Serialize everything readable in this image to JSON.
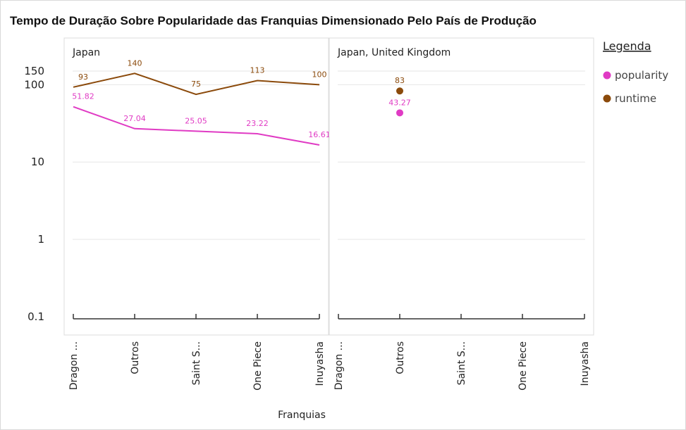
{
  "chart_data": {
    "type": "line",
    "title": "Tempo de Duração Sobre Popularidade das Franquias Dimensionado Pelo País de Produção",
    "xlabel": "Franquias",
    "ylabel": "",
    "y_scale": "log",
    "ylim": [
      0.1,
      150
    ],
    "y_ticks": [
      0.1,
      1,
      10,
      100,
      150
    ],
    "y_tick_labels": [
      "0.1",
      "1",
      "10",
      "100",
      "150"
    ],
    "categories": [
      "Dragon ...",
      "Outros",
      "Saint S...",
      "One Piece",
      "Inuyasha"
    ],
    "legend": {
      "title": "Legenda",
      "position": "right",
      "entries": [
        {
          "name": "popularity",
          "color": "#e03bc4"
        },
        {
          "name": "runtime",
          "color": "#8b4a0b"
        }
      ]
    },
    "panels": [
      {
        "title": "Japan",
        "series": [
          {
            "name": "runtime",
            "color": "#8b4a0b",
            "values": [
              93,
              140,
              75,
              113,
              100
            ],
            "labels": [
              "93",
              "140",
              "75",
              "113",
              "100"
            ]
          },
          {
            "name": "popularity",
            "color": "#e03bc4",
            "values": [
              51.82,
              27.04,
              25.05,
              23.22,
              16.61
            ],
            "labels": [
              "51.82",
              "27.04",
              "25.05",
              "23.22",
              "16.61"
            ]
          }
        ]
      },
      {
        "title": "Japan, United Kingdom",
        "series": [
          {
            "name": "runtime",
            "color": "#8b4a0b",
            "values": [
              null,
              83,
              null,
              null,
              null
            ],
            "labels": [
              "",
              "83",
              "",
              "",
              ""
            ]
          },
          {
            "name": "popularity",
            "color": "#e03bc4",
            "values": [
              null,
              43.27,
              null,
              null,
              null
            ],
            "labels": [
              "",
              "43.27",
              "",
              "",
              ""
            ]
          }
        ]
      }
    ]
  }
}
